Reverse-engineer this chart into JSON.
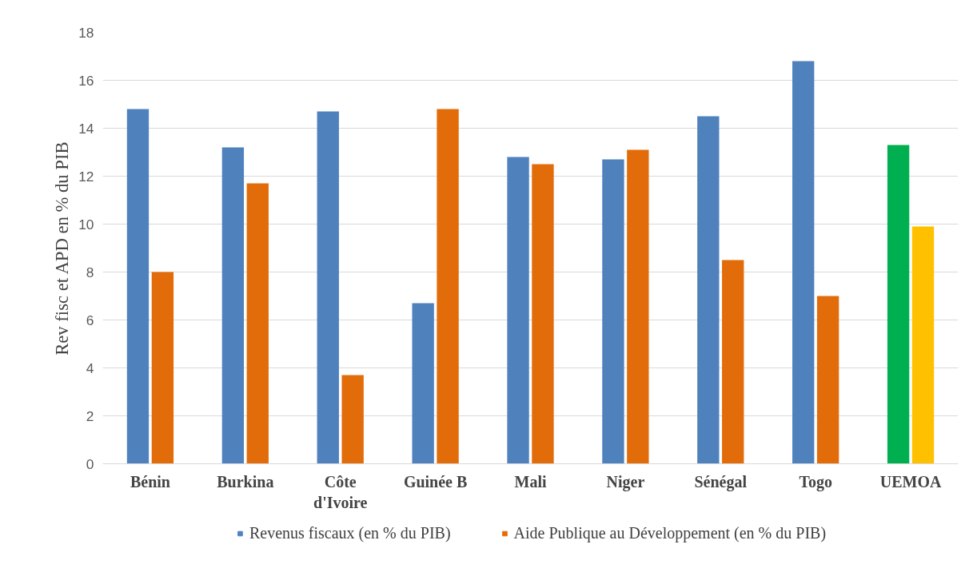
{
  "chart_data": {
    "type": "bar",
    "ylabel": "Rev fisc et APD en % du PIB",
    "categories": [
      "Bénin",
      "Burkina",
      "Côte d'Ivoire",
      "Guinée B",
      "Mali",
      "Niger",
      "Sénégal",
      "Togo",
      "UEMOA"
    ],
    "series": [
      {
        "name": "Revenus fiscaux (en % du PIB)",
        "color": "#4f81bd",
        "colors": [
          "#4f81bd",
          "#4f81bd",
          "#4f81bd",
          "#4f81bd",
          "#4f81bd",
          "#4f81bd",
          "#4f81bd",
          "#4f81bd",
          "#00b050"
        ],
        "values": [
          14.8,
          13.2,
          14.7,
          6.7,
          12.8,
          12.7,
          14.5,
          16.8,
          13.3
        ]
      },
      {
        "name": "Aide Publique au Développement (en % du PIB)",
        "color": "#e36c0a",
        "colors": [
          "#e36c0a",
          "#e36c0a",
          "#e36c0a",
          "#e36c0a",
          "#e36c0a",
          "#e36c0a",
          "#e36c0a",
          "#e36c0a",
          "#ffc000"
        ],
        "values": [
          8.0,
          11.7,
          3.7,
          14.8,
          12.5,
          13.1,
          8.5,
          7.0,
          9.9
        ]
      }
    ],
    "ylim": [
      0,
      18
    ],
    "yticks": [
      0,
      2,
      4,
      6,
      8,
      10,
      12,
      14,
      16,
      18
    ],
    "grid": "y",
    "legend": "bottom"
  }
}
